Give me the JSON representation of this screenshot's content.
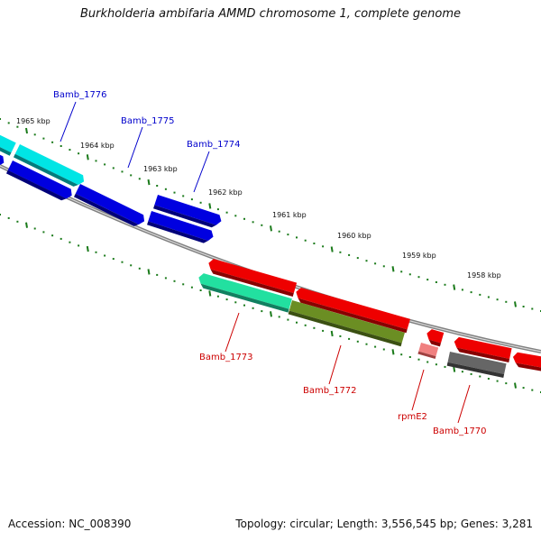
{
  "title": "Burkholderia ambifaria AMMD chromosome 1, complete genome",
  "footer": {
    "accession": "Accession: NC_008390",
    "summary": "Topology: circular; Length: 3,556,545 bp; Genes: 3,281"
  },
  "colors": {
    "backbone": "#808080",
    "tick": "#1a7a1a",
    "forward_label": "#0000cc",
    "reverse_label": "#cc0000"
  },
  "ruler": [
    "1965 kbp",
    "1964 kbp",
    "1963 kbp",
    "1962 kbp",
    "1961 kbp",
    "1960 kbp",
    "1959 kbp",
    "1958 kbp"
  ],
  "genes": [
    {
      "name": "Bamb_1776",
      "strand": "forward",
      "color": "#00e5e5"
    },
    {
      "name": "Bamb_1775",
      "strand": "forward",
      "color": "#0000e0"
    },
    {
      "name": "Bamb_1774",
      "strand": "forward",
      "color": "#0000e0"
    },
    {
      "name": "Bamb_1773",
      "strand": "reverse",
      "color": "#22e0a0"
    },
    {
      "name": "Bamb_1772",
      "strand": "reverse",
      "color": "#6b8e23"
    },
    {
      "name": "rpmE2",
      "strand": "reverse",
      "color": "#f08080"
    },
    {
      "name": "Bamb_1770",
      "strand": "reverse",
      "color": "#666666"
    }
  ],
  "unlabeled_features": [
    {
      "strand": "forward",
      "color": "#0000e0"
    },
    {
      "strand": "reverse",
      "color": "#ee0000"
    }
  ]
}
